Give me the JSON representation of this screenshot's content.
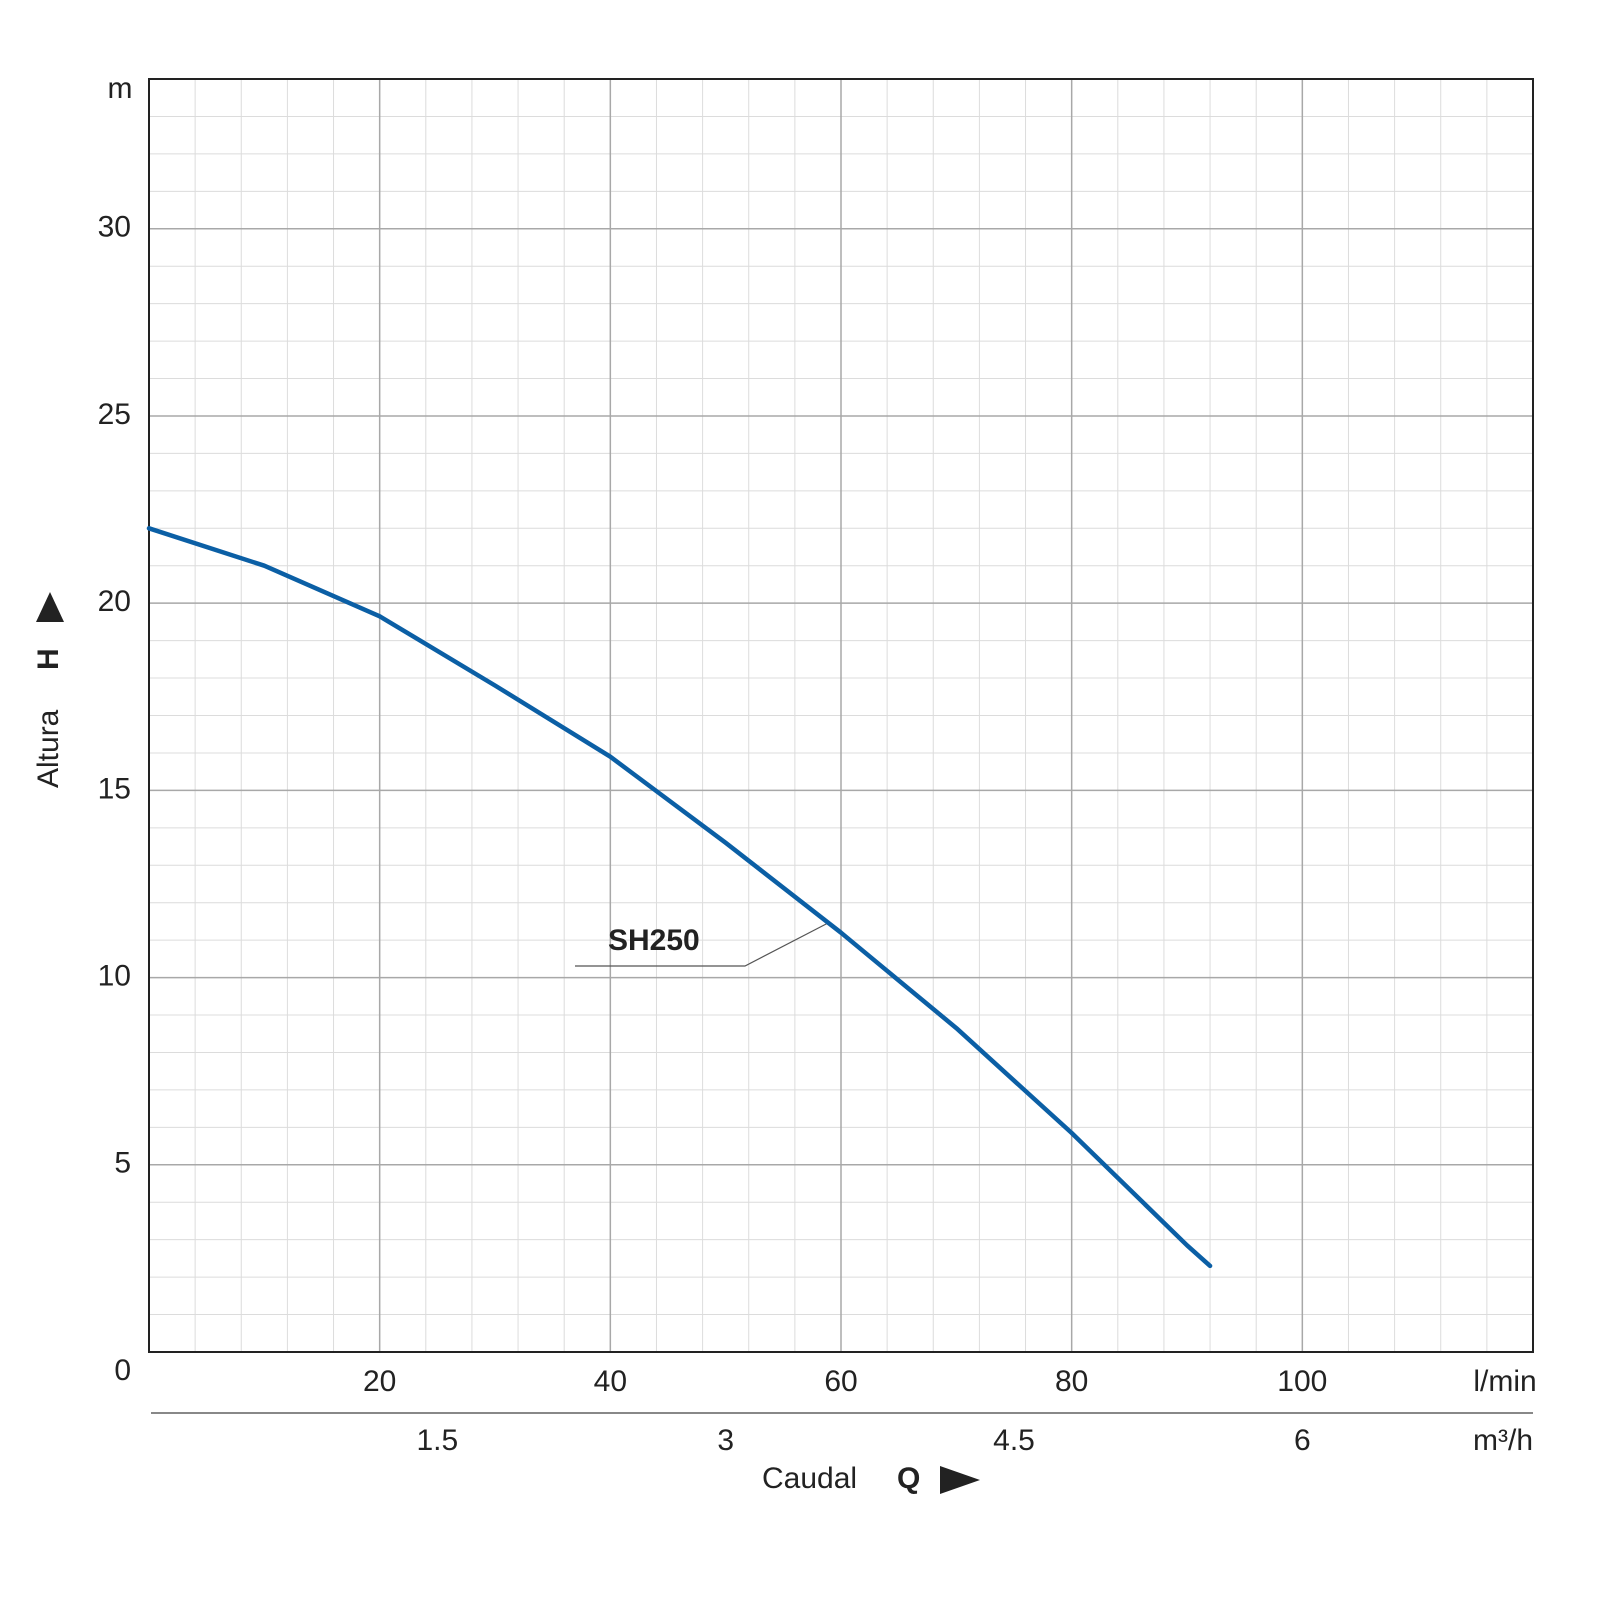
{
  "chart_data": {
    "type": "line",
    "x_label": "Caudal",
    "x_symbol": "Q",
    "x_unit": "l/min",
    "x2_unit": "m³/h",
    "y_label": "Altura",
    "y_symbol": "H",
    "y_unit": "m",
    "xlim": [
      0,
      120
    ],
    "xticks": [
      20,
      40,
      60,
      80,
      100
    ],
    "x2lim": [
      0,
      7.2
    ],
    "x2ticks": [
      1.5,
      3,
      4.5,
      6
    ],
    "ylim": [
      0,
      34
    ],
    "yticks": [
      0,
      5,
      10,
      15,
      20,
      25,
      30
    ],
    "x_minor_step": 4,
    "y_minor_step": 1,
    "grid": true,
    "x": [
      0,
      10,
      20,
      30,
      40,
      50,
      60,
      70,
      80,
      90,
      92
    ],
    "series": [
      {
        "name": "SH250",
        "color": "#0b5fa5",
        "values": [
          22,
          21.0,
          19.65,
          17.8,
          15.9,
          13.6,
          11.2,
          8.65,
          5.85,
          2.85,
          2.3
        ]
      }
    ]
  }
}
